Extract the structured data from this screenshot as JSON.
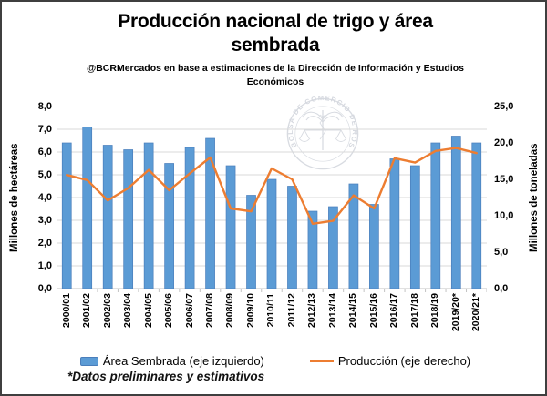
{
  "header": {
    "title_line1": "Producción nacional de trigo y área",
    "title_line2": "sembrada",
    "subtitle": "@BCRMercados  en base a estimaciones de la Dirección  de Información  y Estudios Económicos"
  },
  "watermark": {
    "seal_text": "BOLSA DE COMERCIO DE ROSARIO"
  },
  "footnote": {
    "text": "*Datos preliminares y estimativos"
  },
  "chart_data": {
    "type": "bar+line combo, dual axis",
    "categories": [
      "2000/01",
      "2001/02",
      "2002/03",
      "2003/04",
      "2004/05",
      "2005/06",
      "2006/07",
      "2007/08",
      "2008/09",
      "2009/10",
      "2010/11",
      "2011/12",
      "2012/13",
      "2013/14",
      "2014/15",
      "2015/16",
      "2016/17",
      "2017/18",
      "2018/19",
      "2019/20*",
      "2020/21*"
    ],
    "series": [
      {
        "name": "Área Sembrada (eje izquierdo)",
        "type": "bar",
        "axis": "left",
        "color": "#5B9BD5",
        "edge_color": "#4a7ebb",
        "values": [
          6.4,
          7.1,
          6.3,
          6.1,
          6.4,
          5.5,
          6.2,
          6.6,
          5.4,
          4.1,
          4.8,
          4.5,
          3.4,
          3.6,
          4.6,
          3.7,
          5.7,
          5.4,
          6.4,
          6.7,
          6.4
        ]
      },
      {
        "name": "Producción (eje derecho)",
        "type": "line",
        "axis": "right",
        "color": "#ED7D31",
        "values": [
          15.6,
          14.9,
          12.1,
          13.8,
          16.3,
          13.5,
          15.8,
          18.0,
          11.0,
          10.6,
          16.5,
          15.0,
          8.9,
          9.3,
          12.8,
          11.0,
          17.9,
          17.3,
          18.9,
          19.3,
          18.6
        ]
      }
    ],
    "left_axis": {
      "title": "Millones de hectáreas",
      "min": 0,
      "max": 8,
      "step": 1,
      "tick_labels": [
        "0,0",
        "1,0",
        "2,0",
        "3,0",
        "4,0",
        "5,0",
        "6,0",
        "7,0",
        "8,0"
      ]
    },
    "right_axis": {
      "title": "Millones de toneladas",
      "min": 0,
      "max": 25,
      "step": 5,
      "tick_labels": [
        "0,0",
        "5,0",
        "10,0",
        "15,0",
        "20,0",
        "25,0"
      ]
    },
    "grid": true,
    "grid_color": "#d9d9d9",
    "axisline_color": "#c3c3c3",
    "legend_position": "bottom"
  }
}
